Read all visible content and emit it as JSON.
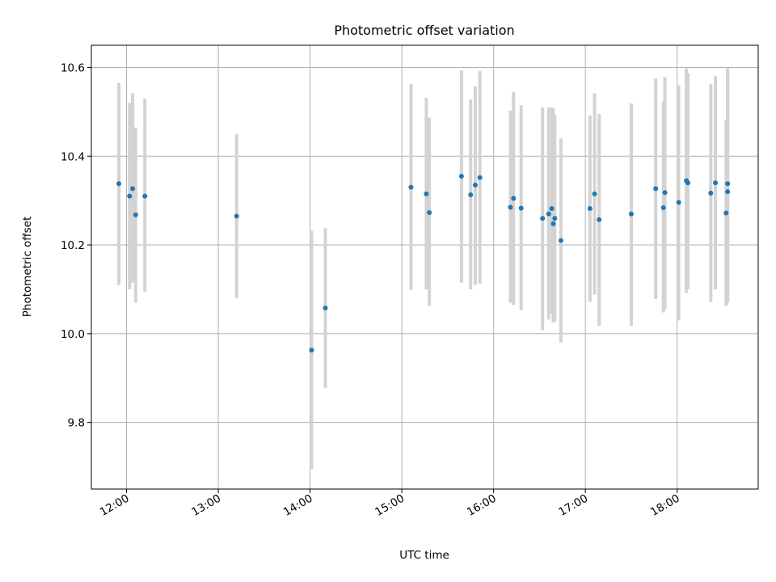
{
  "chart_data": {
    "type": "scatter",
    "title": "Photometric offset variation",
    "xlabel": "UTC time",
    "ylabel": "Photometric offset",
    "x_ticks": [
      "12:00",
      "13:00",
      "14:00",
      "15:00",
      "16:00",
      "17:00",
      "18:00"
    ],
    "y_ticks": [
      "9.8",
      "10.0",
      "10.2",
      "10.4",
      "10.6"
    ],
    "y_tick_values": [
      9.8,
      10.0,
      10.2,
      10.4,
      10.6
    ],
    "xlim": [
      "11:37",
      "18:53"
    ],
    "ylim": [
      9.65,
      10.65
    ],
    "grid": true,
    "colors": {
      "point": "#1f77b4",
      "errorbar": "#d3d3d3",
      "grid": "#b0b0b0"
    },
    "points": [
      {
        "t": "11:55",
        "y": 10.338,
        "lo": 10.11,
        "hi": 10.565
      },
      {
        "t": "12:02",
        "y": 10.31,
        "lo": 10.1,
        "hi": 10.52
      },
      {
        "t": "12:04",
        "y": 10.327,
        "lo": 10.115,
        "hi": 10.542
      },
      {
        "t": "12:06",
        "y": 10.268,
        "lo": 10.07,
        "hi": 10.465
      },
      {
        "t": "12:12",
        "y": 10.31,
        "lo": 10.095,
        "hi": 10.53
      },
      {
        "t": "13:12",
        "y": 10.265,
        "lo": 10.08,
        "hi": 10.45
      },
      {
        "t": "14:01",
        "y": 9.963,
        "lo": 9.695,
        "hi": 10.232
      },
      {
        "t": "14:10",
        "y": 10.058,
        "lo": 9.878,
        "hi": 10.238
      },
      {
        "t": "15:06",
        "y": 10.33,
        "lo": 10.098,
        "hi": 10.563
      },
      {
        "t": "15:16",
        "y": 10.315,
        "lo": 10.1,
        "hi": 10.532
      },
      {
        "t": "15:18",
        "y": 10.273,
        "lo": 10.062,
        "hi": 10.487
      },
      {
        "t": "15:39",
        "y": 10.355,
        "lo": 10.115,
        "hi": 10.593
      },
      {
        "t": "15:45",
        "y": 10.313,
        "lo": 10.1,
        "hi": 10.528
      },
      {
        "t": "15:48",
        "y": 10.335,
        "lo": 10.11,
        "hi": 10.558
      },
      {
        "t": "15:51",
        "y": 10.352,
        "lo": 10.113,
        "hi": 10.592
      },
      {
        "t": "16:11",
        "y": 10.285,
        "lo": 10.07,
        "hi": 10.503
      },
      {
        "t": "16:13",
        "y": 10.305,
        "lo": 10.065,
        "hi": 10.545
      },
      {
        "t": "16:18",
        "y": 10.283,
        "lo": 10.053,
        "hi": 10.515
      },
      {
        "t": "16:32",
        "y": 10.26,
        "lo": 10.008,
        "hi": 10.51
      },
      {
        "t": "16:36",
        "y": 10.27,
        "lo": 10.032,
        "hi": 10.51
      },
      {
        "t": "16:38",
        "y": 10.282,
        "lo": 10.045,
        "hi": 10.51
      },
      {
        "t": "16:39",
        "y": 10.248,
        "lo": 10.025,
        "hi": 10.508
      },
      {
        "t": "16:40",
        "y": 10.26,
        "lo": 10.028,
        "hi": 10.493
      },
      {
        "t": "16:44",
        "y": 10.21,
        "lo": 9.98,
        "hi": 10.44
      },
      {
        "t": "17:03",
        "y": 10.282,
        "lo": 10.072,
        "hi": 10.492
      },
      {
        "t": "17:06",
        "y": 10.315,
        "lo": 10.088,
        "hi": 10.542
      },
      {
        "t": "17:09",
        "y": 10.257,
        "lo": 10.018,
        "hi": 10.495
      },
      {
        "t": "17:30",
        "y": 10.27,
        "lo": 10.018,
        "hi": 10.519
      },
      {
        "t": "17:46",
        "y": 10.327,
        "lo": 10.078,
        "hi": 10.575
      },
      {
        "t": "17:51",
        "y": 10.284,
        "lo": 10.048,
        "hi": 10.523
      },
      {
        "t": "17:52",
        "y": 10.318,
        "lo": 10.055,
        "hi": 10.578
      },
      {
        "t": "18:01",
        "y": 10.296,
        "lo": 10.03,
        "hi": 10.56
      },
      {
        "t": "18:06",
        "y": 10.345,
        "lo": 10.092,
        "hi": 10.598
      },
      {
        "t": "18:07",
        "y": 10.34,
        "lo": 10.1,
        "hi": 10.588
      },
      {
        "t": "18:22",
        "y": 10.317,
        "lo": 10.072,
        "hi": 10.562
      },
      {
        "t": "18:25",
        "y": 10.34,
        "lo": 10.1,
        "hi": 10.58
      },
      {
        "t": "18:32",
        "y": 10.272,
        "lo": 10.062,
        "hi": 10.482
      },
      {
        "t": "18:33",
        "y": 10.32,
        "lo": 10.07,
        "hi": 10.598
      },
      {
        "t": "18:33",
        "y": 10.338,
        "lo": 10.078,
        "hi": 10.598
      }
    ]
  }
}
